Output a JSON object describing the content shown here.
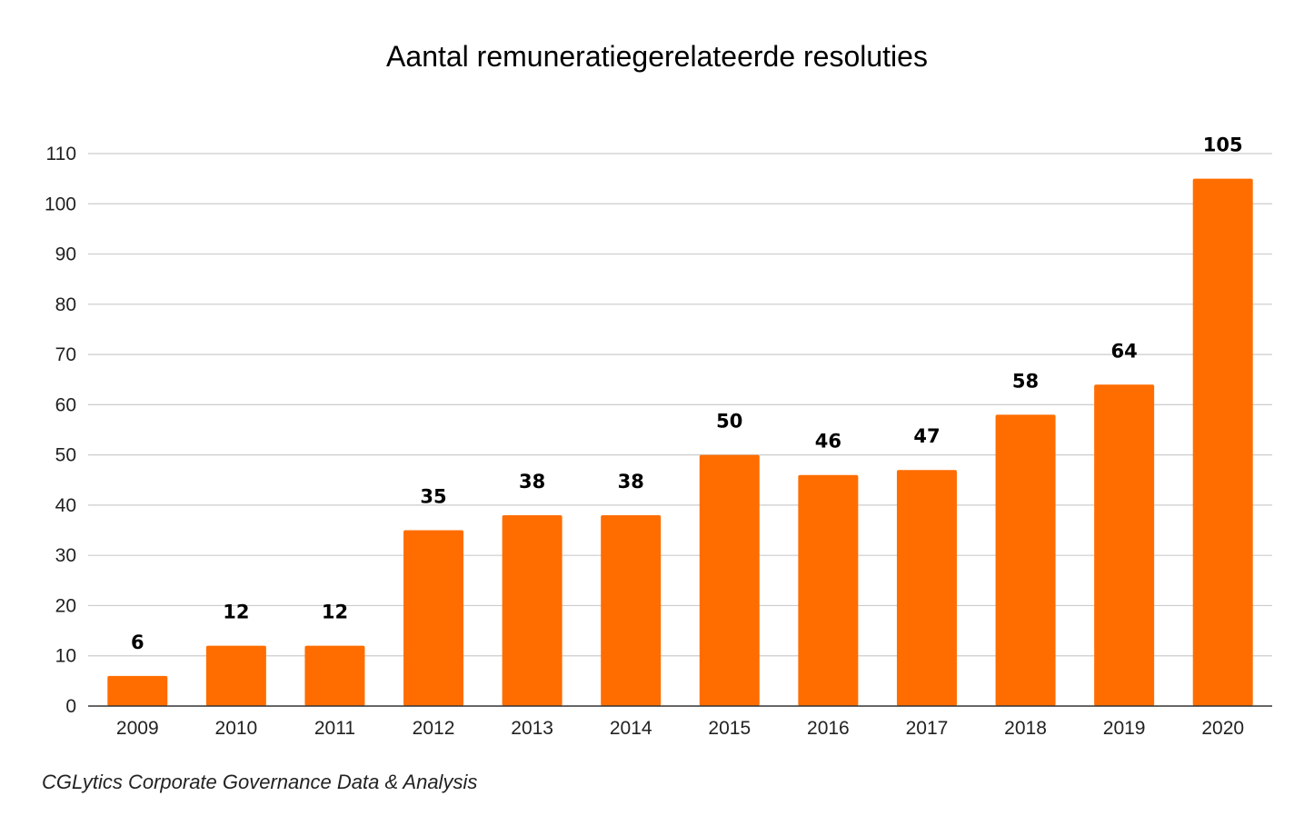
{
  "source_note": "CGLytics Corporate Governance Data & Analysis",
  "colors": {
    "bar": "#ff6d00",
    "gridline": "#cccccc",
    "baseline": "#333333",
    "text": "#222222"
  },
  "chart_data": {
    "type": "bar",
    "title": "Aantal remuneratiegerelateerde resoluties",
    "xlabel": "",
    "ylabel": "",
    "categories": [
      "2009",
      "2010",
      "2011",
      "2012",
      "2013",
      "2014",
      "2015",
      "2016",
      "2017",
      "2018",
      "2019",
      "2020"
    ],
    "values": [
      6,
      12,
      12,
      35,
      38,
      38,
      50,
      46,
      47,
      58,
      64,
      105
    ],
    "ylim": [
      0,
      110
    ],
    "yticks": [
      0,
      10,
      20,
      30,
      40,
      50,
      60,
      70,
      80,
      90,
      100,
      110
    ],
    "grid": true,
    "legend": "none",
    "data_labels": true
  }
}
